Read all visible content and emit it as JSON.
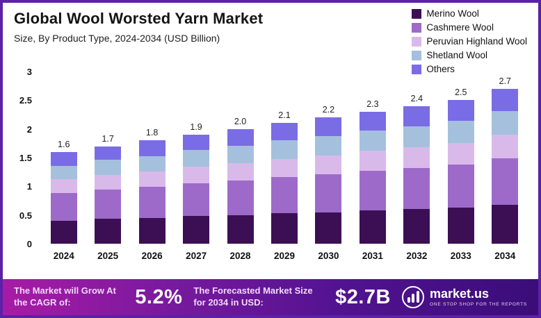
{
  "chart_data": {
    "type": "bar",
    "stacked": true,
    "title": "Global Wool Worsted Yarn Market",
    "subtitle": "Size, By Product Type, 2024-2034 (USD Billion)",
    "categories": [
      "2024",
      "2025",
      "2026",
      "2027",
      "2028",
      "2029",
      "2030",
      "2031",
      "2032",
      "2033",
      "2034"
    ],
    "total_labels": [
      "1.6",
      "1.7",
      "1.8",
      "1.9",
      "2.0",
      "2.1",
      "2.2",
      "2.3",
      "2.4",
      "2.5",
      "2.7"
    ],
    "totals": [
      1.6,
      1.7,
      1.8,
      1.9,
      2.0,
      2.1,
      2.2,
      2.3,
      2.4,
      2.5,
      2.7
    ],
    "ylim": [
      0,
      3
    ],
    "yticks": [
      0,
      0.5,
      1,
      1.5,
      2,
      2.5,
      3
    ],
    "ytick_labels": [
      "0",
      "0.5",
      "1",
      "1.5",
      "2",
      "2.5",
      "3"
    ],
    "grid": false,
    "legend_position": "top-right",
    "series": [
      {
        "name": "Merino Wool",
        "color": "#3c0f54",
        "values": [
          0.4,
          0.43,
          0.45,
          0.48,
          0.5,
          0.53,
          0.55,
          0.58,
          0.6,
          0.63,
          0.68
        ]
      },
      {
        "name": "Cashmere Wool",
        "color": "#9d6ac9",
        "values": [
          0.48,
          0.51,
          0.54,
          0.57,
          0.6,
          0.63,
          0.66,
          0.69,
          0.72,
          0.75,
          0.81
        ]
      },
      {
        "name": "Peruvian Highland Wool",
        "color": "#d9b9ea",
        "values": [
          0.24,
          0.26,
          0.27,
          0.29,
          0.3,
          0.32,
          0.33,
          0.35,
          0.36,
          0.38,
          0.41
        ]
      },
      {
        "name": "Shetland Wool",
        "color": "#a5c0dd",
        "values": [
          0.24,
          0.26,
          0.27,
          0.29,
          0.3,
          0.32,
          0.33,
          0.35,
          0.36,
          0.38,
          0.41
        ]
      },
      {
        "name": "Others",
        "color": "#7a6ce4",
        "values": [
          0.24,
          0.24,
          0.27,
          0.27,
          0.3,
          0.3,
          0.33,
          0.33,
          0.36,
          0.36,
          0.39
        ]
      }
    ]
  },
  "footer": {
    "cagr_label": "The Market will Grow At the CAGR of:",
    "cagr_value": "5.2%",
    "forecast_label": "The Forecasted Market Size for 2034 in USD:",
    "forecast_value": "$2.7B",
    "brand": "market.us",
    "brand_tagline": "ONE STOP SHOP FOR THE REPORTS",
    "gradient_left": "#a81ba5",
    "gradient_right": "#3a0d78"
  },
  "page": {
    "border_color": "#5b21a6"
  }
}
